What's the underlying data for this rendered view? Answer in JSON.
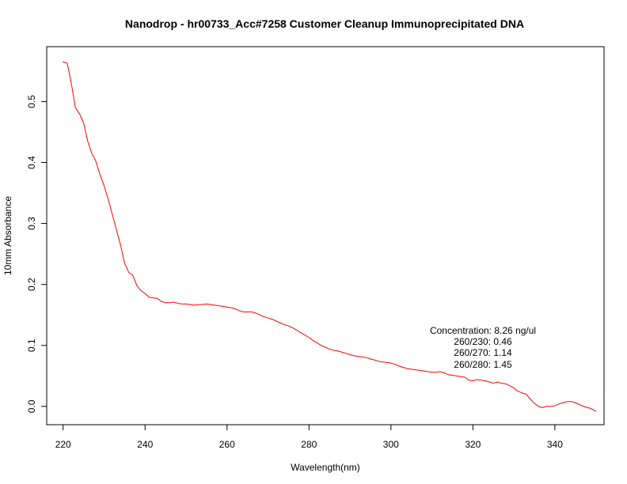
{
  "chart_data": {
    "type": "line",
    "title": "Nanodrop - hr00733_Acc#7258  Customer Cleanup Immunoprecipitated DNA",
    "xlabel": "Wavelength(nm)",
    "ylabel": "10mm Absorbance",
    "xlim": [
      216,
      352
    ],
    "ylim": [
      -0.03,
      0.59
    ],
    "xticks": [
      220,
      240,
      260,
      280,
      300,
      320,
      340
    ],
    "yticks": [
      0.0,
      0.1,
      0.2,
      0.3,
      0.4,
      0.5
    ],
    "xtick_labels": [
      "220",
      "240",
      "260",
      "280",
      "300",
      "320",
      "340"
    ],
    "ytick_labels": [
      "0.0",
      "0.1",
      "0.2",
      "0.3",
      "0.4",
      "0.5"
    ],
    "grid": false,
    "series": [
      {
        "color": "#ff0000",
        "x": [
          220,
          221,
          222,
          223,
          224,
          225,
          226,
          227,
          228,
          229,
          230,
          231,
          232,
          233,
          234,
          235,
          236,
          237,
          238,
          239,
          240,
          241,
          242,
          243,
          244,
          245,
          246,
          247,
          248,
          249,
          250,
          251,
          252,
          253,
          254,
          255,
          256,
          257,
          258,
          259,
          260,
          261,
          262,
          263,
          264,
          265,
          266,
          267,
          268,
          269,
          270,
          271,
          272,
          273,
          274,
          275,
          276,
          277,
          278,
          279,
          280,
          281,
          282,
          283,
          284,
          285,
          286,
          287,
          288,
          289,
          290,
          291,
          292,
          293,
          294,
          295,
          296,
          297,
          298,
          299,
          300,
          301,
          302,
          303,
          304,
          305,
          306,
          307,
          308,
          309,
          310,
          311,
          312,
          313,
          314,
          315,
          316,
          317,
          318,
          319,
          320,
          321,
          322,
          323,
          324,
          325,
          326,
          327,
          328,
          329,
          330,
          331,
          332,
          333,
          334,
          335,
          336,
          337,
          338,
          339,
          340,
          341,
          342,
          343,
          344,
          345,
          346,
          347,
          348,
          349,
          350
        ],
        "y": [
          0.565,
          0.563,
          0.53,
          0.49,
          0.48,
          0.465,
          0.435,
          0.415,
          0.402,
          0.38,
          0.362,
          0.34,
          0.315,
          0.29,
          0.265,
          0.235,
          0.22,
          0.215,
          0.198,
          0.19,
          0.185,
          0.179,
          0.178,
          0.177,
          0.172,
          0.17,
          0.17,
          0.171,
          0.169,
          0.168,
          0.168,
          0.167,
          0.166,
          0.167,
          0.167,
          0.168,
          0.167,
          0.166,
          0.165,
          0.164,
          0.163,
          0.162,
          0.16,
          0.157,
          0.155,
          0.155,
          0.155,
          0.153,
          0.15,
          0.147,
          0.145,
          0.143,
          0.14,
          0.137,
          0.134,
          0.132,
          0.129,
          0.125,
          0.121,
          0.117,
          0.113,
          0.108,
          0.104,
          0.1,
          0.097,
          0.094,
          0.092,
          0.091,
          0.089,
          0.087,
          0.085,
          0.083,
          0.082,
          0.081,
          0.08,
          0.078,
          0.076,
          0.074,
          0.073,
          0.072,
          0.071,
          0.069,
          0.066,
          0.064,
          0.062,
          0.061,
          0.06,
          0.059,
          0.058,
          0.057,
          0.056,
          0.056,
          0.057,
          0.055,
          0.052,
          0.051,
          0.05,
          0.049,
          0.048,
          0.043,
          0.042,
          0.044,
          0.043,
          0.042,
          0.04,
          0.038,
          0.04,
          0.038,
          0.037,
          0.034,
          0.03,
          0.025,
          0.022,
          0.02,
          0.012,
          0.005,
          0.0,
          -0.002,
          0.0,
          0.0,
          0.001,
          0.004,
          0.006,
          0.008,
          0.008,
          0.006,
          0.003,
          0.0,
          -0.002,
          -0.004,
          -0.008
        ]
      }
    ],
    "annotations": [
      "Concentration: 8.26 ng/ul",
      "260/230: 0.46",
      "260/270: 1.14",
      "260/280: 1.45"
    ]
  }
}
